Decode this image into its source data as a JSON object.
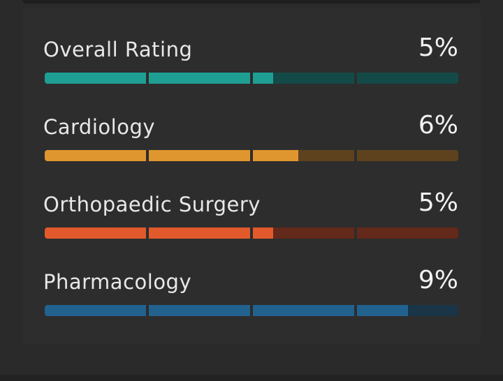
{
  "metrics": [
    {
      "label": "Overall Rating",
      "value": "5%",
      "fill_segments": 2.2,
      "color": "#1f9e94",
      "track_color": "#134a47"
    },
    {
      "label": "Cardiology",
      "value": "6%",
      "fill_segments": 2.45,
      "color": "#e0962e",
      "track_color": "#5e421e"
    },
    {
      "label": "Orthopaedic Surgery",
      "value": "5%",
      "fill_segments": 2.2,
      "color": "#e25a2c",
      "track_color": "#63291a"
    },
    {
      "label": "Pharmacology",
      "value": "9%",
      "fill_segments": 3.5,
      "color": "#21628f",
      "track_color": "#1a3448"
    }
  ],
  "segments_per_bar": 4
}
